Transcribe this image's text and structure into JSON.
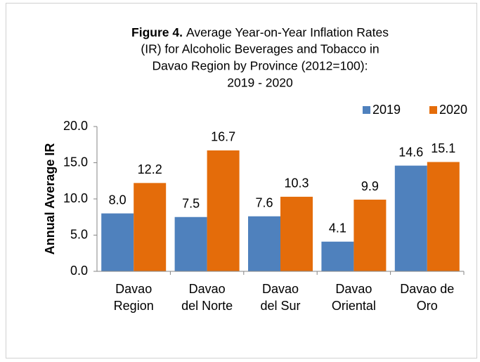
{
  "chart_data": {
    "type": "bar",
    "title_prefix": "Figure 4.",
    "title_lines": [
      "Average Year-on-Year Inflation Rates",
      "(IR) for Alcoholic Beverages and Tobacco in",
      "Davao Region by Province (2012=100):",
      "2019 - 2020"
    ],
    "y_label": "Annual Average IR",
    "categories": [
      [
        "Davao",
        "Region"
      ],
      [
        "Davao",
        "del Norte"
      ],
      [
        "Davao",
        "del Sur"
      ],
      [
        "Davao",
        "Oriental"
      ],
      [
        "Davao de",
        "Oro"
      ]
    ],
    "series": [
      {
        "name": "2019",
        "color": "#4f81bd",
        "values": [
          8.0,
          7.5,
          7.6,
          4.1,
          14.6
        ],
        "value_labels": [
          "8.0",
          "7.5",
          "7.6",
          "4.1",
          "14.6"
        ]
      },
      {
        "name": "2020",
        "color": "#e46c0a",
        "values": [
          12.2,
          16.7,
          10.3,
          9.9,
          15.1
        ],
        "value_labels": [
          "12.2",
          "16.7",
          "10.3",
          "9.9",
          "15.1"
        ]
      }
    ],
    "ylim": [
      0,
      20
    ],
    "yticks": [
      {
        "value": 0,
        "label": "0.0"
      },
      {
        "value": 5,
        "label": "5.0"
      },
      {
        "value": 10,
        "label": "10.0"
      },
      {
        "value": 15,
        "label": "15.0"
      },
      {
        "value": 20,
        "label": "20.0"
      }
    ],
    "grid": false,
    "legend_position": "top-right"
  }
}
